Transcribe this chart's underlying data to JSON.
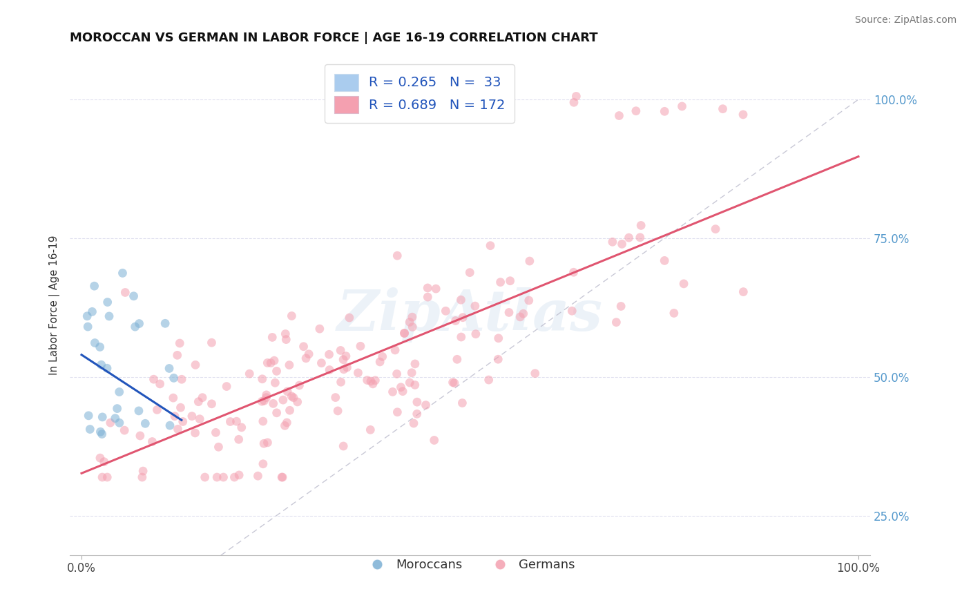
{
  "title": "MOROCCAN VS GERMAN IN LABOR FORCE | AGE 16-19 CORRELATION CHART",
  "source": "Source: ZipAtlas.com",
  "ylabel": "In Labor Force | Age 16-19",
  "xlim": [
    -0.015,
    1.015
  ],
  "ylim": [
    0.18,
    1.08
  ],
  "ytick_positions": [
    0.25,
    0.5,
    0.75,
    1.0
  ],
  "ytick_labels": [
    "25.0%",
    "50.0%",
    "75.0%",
    "100.0%"
  ],
  "moroccan_color": "#7BAFD4",
  "german_color": "#F4A0B0",
  "moroccan_R": 0.265,
  "moroccan_N": 33,
  "german_R": 0.689,
  "german_N": 172,
  "moroccan_line_color": "#2255BB",
  "german_line_color": "#E05570",
  "ref_line_color": "#BBBBCC",
  "background_color": "#FFFFFF",
  "grid_color": "#DDDDEE",
  "legend_R_color": "#2255BB",
  "marker_size": 85,
  "alpha": 0.55,
  "seed": 17
}
